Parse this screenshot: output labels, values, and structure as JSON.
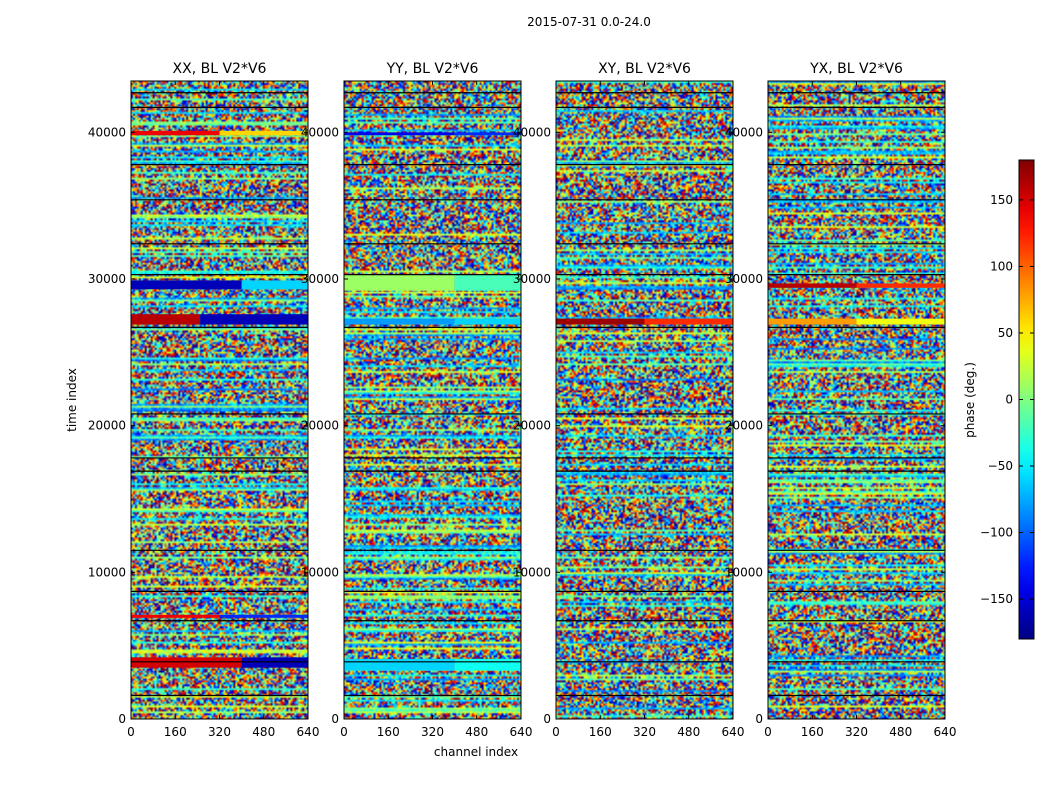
{
  "figure": {
    "title": "2015-07-31 0.0-24.0"
  },
  "chart_data": {
    "type": "heatmap",
    "title": "2015-07-31 0.0-24.0",
    "xlabel": "channel index",
    "ylabel": "time index",
    "xlim": [
      0,
      640
    ],
    "ylim": [
      0,
      43500
    ],
    "xticks": [
      0,
      160,
      320,
      480,
      640
    ],
    "yticks": [
      0,
      10000,
      20000,
      30000,
      40000
    ],
    "colormap": "jet",
    "panels": [
      {
        "title": "XX, BL V2*V6",
        "bands": [
          {
            "y": [
              3500,
              4200
            ],
            "phase_start": 150,
            "phase_end": -160,
            "x_split": 400
          },
          {
            "y": [
              6900,
              7100
            ],
            "phase_start": 140,
            "phase_end": -120,
            "x_split": 320
          },
          {
            "y": [
              26900,
              27600
            ],
            "phase_start": 160,
            "phase_end": -160,
            "x_split": 250
          },
          {
            "y": [
              29300,
              29900
            ],
            "phase_start": -160,
            "phase_end": -60,
            "x_split": 400
          },
          {
            "y": [
              39800,
              40100
            ],
            "phase_start": 140,
            "phase_end": 60,
            "x_split": 320
          }
        ]
      },
      {
        "title": "YY, BL V2*V6",
        "bands": [
          {
            "y": [
              3300,
              4100
            ],
            "phase_start": -60,
            "phase_end": -40,
            "x_split": 400
          },
          {
            "y": [
              26900,
              27300
            ],
            "phase_start": -80,
            "phase_end": -60,
            "x_split": 400
          },
          {
            "y": [
              29200,
              30300
            ],
            "phase_start": 10,
            "phase_end": -20,
            "x_split": 400
          },
          {
            "y": [
              39800,
              40000
            ],
            "phase_start": -140,
            "phase_end": -120,
            "x_split": 400
          }
        ]
      },
      {
        "title": "XY, BL V2*V6",
        "bands": [
          {
            "y": [
              26900,
              27300
            ],
            "phase_start": 170,
            "phase_end": 120,
            "x_split": 320
          }
        ]
      },
      {
        "title": "YX, BL V2*V6",
        "bands": [
          {
            "y": [
              26900,
              27300
            ],
            "phase_start": 80,
            "phase_end": 40,
            "x_split": 320
          },
          {
            "y": [
              29400,
              29700
            ],
            "phase_start": 160,
            "phase_end": 120,
            "x_split": 320
          }
        ]
      }
    ],
    "black_lines_y": [
      1600,
      3900,
      6700,
      8700,
      11500,
      16900,
      17800,
      20800,
      26700,
      30300,
      32400,
      35400,
      37800,
      41700,
      42700
    ],
    "colorbar": {
      "label": "phase (deg.)",
      "range": [
        -180,
        180
      ],
      "ticks": [
        -150,
        -100,
        -50,
        0,
        50,
        100,
        150
      ],
      "tick_labels": [
        "−150",
        "−100",
        "−50",
        "0",
        "50",
        "100",
        "150"
      ]
    }
  }
}
